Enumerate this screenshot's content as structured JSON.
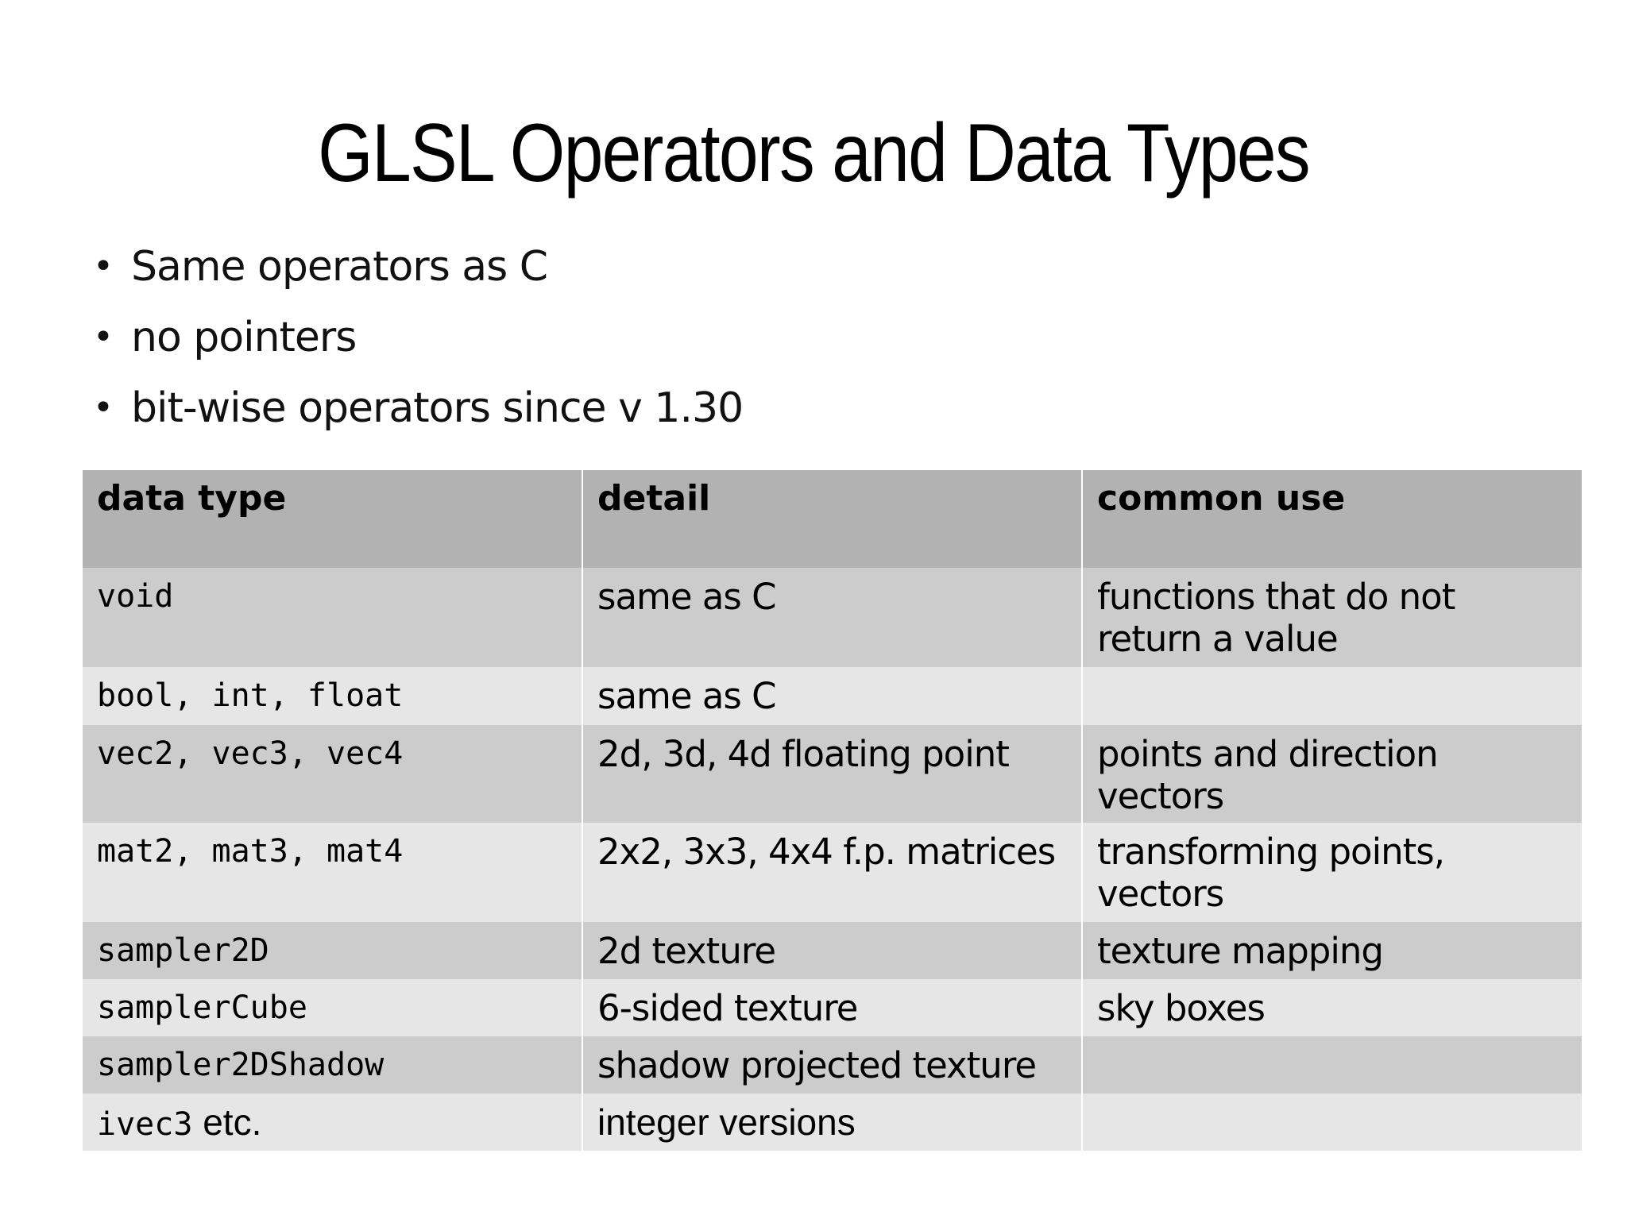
{
  "slide": {
    "title": "GLSL Operators and Data Types"
  },
  "bullets": [
    "Same operators as C",
    "no pointers",
    "bit-wise operators since v 1.30"
  ],
  "table": {
    "headers": [
      "data type",
      "detail",
      "common use"
    ],
    "rows": [
      {
        "type": "void",
        "detail": "same as C",
        "use": "functions that do not return a value"
      },
      {
        "type": "bool, int, float",
        "detail": "same as C",
        "use": ""
      },
      {
        "type": "vec2, vec3, vec4",
        "detail": "2d, 3d, 4d floating point",
        "use": "points and direction vectors"
      },
      {
        "type": "mat2, mat3, mat4",
        "detail": "2x2, 3x3, 4x4 f.p. matrices",
        "use": "transforming points, vectors"
      },
      {
        "type": "sampler2D",
        "detail": "2d texture",
        "use": "texture mapping"
      },
      {
        "type": "samplerCube",
        "detail": "6-sided texture",
        "use": "sky boxes"
      },
      {
        "type": "sampler2DShadow",
        "detail": "shadow projected texture",
        "use": ""
      },
      {
        "type_mono": "ivec3",
        "type_rest": " etc.",
        "detail": "integer versions",
        "use": ""
      }
    ]
  },
  "colors": {
    "header_bg": "#b2b2b2",
    "row_dark": "#cccccc",
    "row_light": "#e6e6e6",
    "text": "#000000"
  }
}
